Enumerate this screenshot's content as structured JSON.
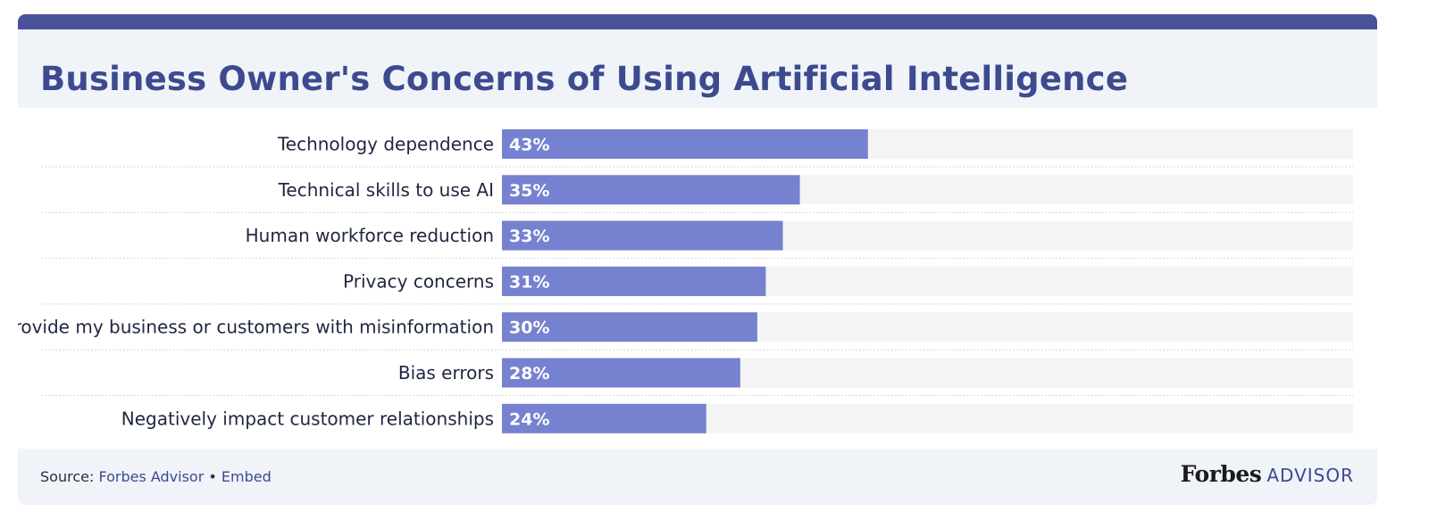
{
  "header": {
    "title": "Business Owner's Concerns of Using Artificial Intelligence"
  },
  "chart_data": {
    "type": "bar",
    "orientation": "horizontal",
    "title": "Business Owner's Concerns of Using Artificial Intelligence",
    "categories": [
      "Technology dependence",
      "Technical skills to use AI",
      "Human workforce reduction",
      "Privacy concerns",
      "Provide my business or customers with misinformation",
      "Bias errors",
      "Negatively impact customer relationships"
    ],
    "values": [
      43,
      35,
      33,
      31,
      30,
      28,
      24
    ],
    "value_labels": [
      "43%",
      "35%",
      "33%",
      "31%",
      "30%",
      "28%",
      "24%"
    ],
    "unit": "%",
    "xlim": [
      0,
      100
    ],
    "colors": {
      "bar": "#7681cf",
      "track": "#f4f4f4",
      "divider": "#d5d5d5",
      "accent": "#4a529a"
    },
    "grid": false,
    "legend": "none"
  },
  "footer": {
    "source_prefix": "Source:",
    "source_link": "Forbes Advisor",
    "separator": "•",
    "embed_link": "Embed"
  },
  "brand": {
    "forbes": "Forbes",
    "advisor": "ADVISOR"
  }
}
